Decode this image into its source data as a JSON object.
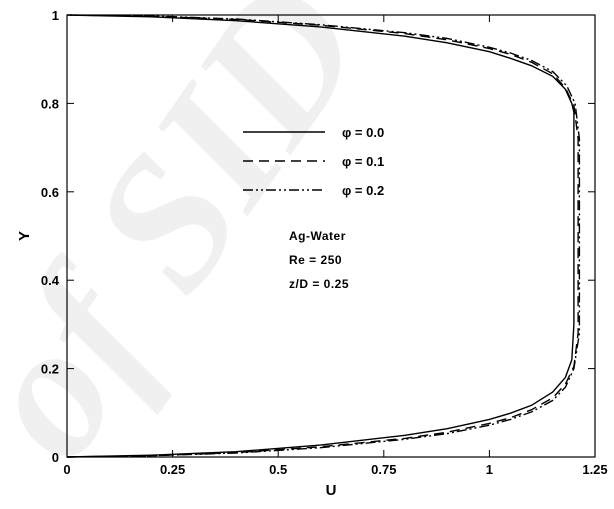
{
  "chart_data": {
    "type": "line",
    "xlabel": "U",
    "ylabel": "Y",
    "xlim": [
      0,
      1.25
    ],
    "ylim": [
      0,
      1
    ],
    "x_ticks": [
      "0",
      "0.25",
      "0.5",
      "0.75",
      "1",
      "1.25"
    ],
    "y_ticks": [
      "0",
      "0.2",
      "0.4",
      "0.6",
      "0.8",
      "1"
    ],
    "x_tick_values": [
      0,
      0.25,
      0.5,
      0.75,
      1,
      1.25
    ],
    "y_tick_values": [
      0,
      0.2,
      0.4,
      0.6,
      0.8,
      1
    ],
    "grid": false,
    "legend_position": "center",
    "series": [
      {
        "name": "φ = 0.0",
        "style": "solid",
        "color": "#000000",
        "points": [
          [
            0,
            0
          ],
          [
            0.2,
            0.004
          ],
          [
            0.4,
            0.012
          ],
          [
            0.6,
            0.027
          ],
          [
            0.8,
            0.049
          ],
          [
            0.9,
            0.064
          ],
          [
            1.0,
            0.085
          ],
          [
            1.05,
            0.099
          ],
          [
            1.1,
            0.117
          ],
          [
            1.15,
            0.147
          ],
          [
            1.18,
            0.18
          ],
          [
            1.195,
            0.22
          ],
          [
            1.2,
            0.3
          ],
          [
            1.2,
            0.5
          ],
          [
            1.2,
            0.7
          ],
          [
            1.2,
            0.78
          ],
          [
            1.195,
            0.8
          ],
          [
            1.18,
            0.832
          ],
          [
            1.15,
            0.861
          ],
          [
            1.1,
            0.885
          ],
          [
            1.05,
            0.902
          ],
          [
            1.0,
            0.917
          ],
          [
            0.9,
            0.937
          ],
          [
            0.8,
            0.952
          ],
          [
            0.6,
            0.973
          ],
          [
            0.4,
            0.987
          ],
          [
            0.2,
            0.996
          ],
          [
            0,
            1
          ]
        ]
      },
      {
        "name": "φ = 0.1",
        "style": "dashed",
        "color": "#000000",
        "points": [
          [
            0,
            0
          ],
          [
            0.2,
            0.003
          ],
          [
            0.4,
            0.01
          ],
          [
            0.6,
            0.023
          ],
          [
            0.8,
            0.042
          ],
          [
            0.9,
            0.056
          ],
          [
            1.0,
            0.076
          ],
          [
            1.05,
            0.089
          ],
          [
            1.1,
            0.107
          ],
          [
            1.15,
            0.134
          ],
          [
            1.18,
            0.165
          ],
          [
            1.2,
            0.205
          ],
          [
            1.21,
            0.28
          ],
          [
            1.21,
            0.5
          ],
          [
            1.21,
            0.72
          ],
          [
            1.2,
            0.795
          ],
          [
            1.18,
            0.835
          ],
          [
            1.15,
            0.867
          ],
          [
            1.1,
            0.893
          ],
          [
            1.05,
            0.911
          ],
          [
            1.0,
            0.924
          ],
          [
            0.9,
            0.944
          ],
          [
            0.8,
            0.958
          ],
          [
            0.6,
            0.977
          ],
          [
            0.4,
            0.99
          ],
          [
            0.2,
            0.997
          ],
          [
            0,
            1
          ]
        ]
      },
      {
        "name": "φ = 0.2",
        "style": "dash-dot-dot",
        "color": "#000000",
        "points": [
          [
            0,
            0
          ],
          [
            0.2,
            0.003
          ],
          [
            0.4,
            0.009
          ],
          [
            0.6,
            0.021
          ],
          [
            0.8,
            0.04
          ],
          [
            0.9,
            0.053
          ],
          [
            1.0,
            0.072
          ],
          [
            1.05,
            0.085
          ],
          [
            1.1,
            0.102
          ],
          [
            1.15,
            0.128
          ],
          [
            1.18,
            0.158
          ],
          [
            1.2,
            0.2
          ],
          [
            1.213,
            0.28
          ],
          [
            1.213,
            0.5
          ],
          [
            1.213,
            0.72
          ],
          [
            1.203,
            0.8
          ],
          [
            1.183,
            0.84
          ],
          [
            1.15,
            0.872
          ],
          [
            1.1,
            0.897
          ],
          [
            1.05,
            0.914
          ],
          [
            1.0,
            0.927
          ],
          [
            0.9,
            0.947
          ],
          [
            0.8,
            0.96
          ],
          [
            0.6,
            0.978
          ],
          [
            0.4,
            0.991
          ],
          [
            0.2,
            0.998
          ],
          [
            0,
            1
          ]
        ]
      }
    ],
    "annotations": [
      "Ag-Water",
      "Re = 250",
      "z/D = 0.25"
    ],
    "watermark": "of SID"
  }
}
